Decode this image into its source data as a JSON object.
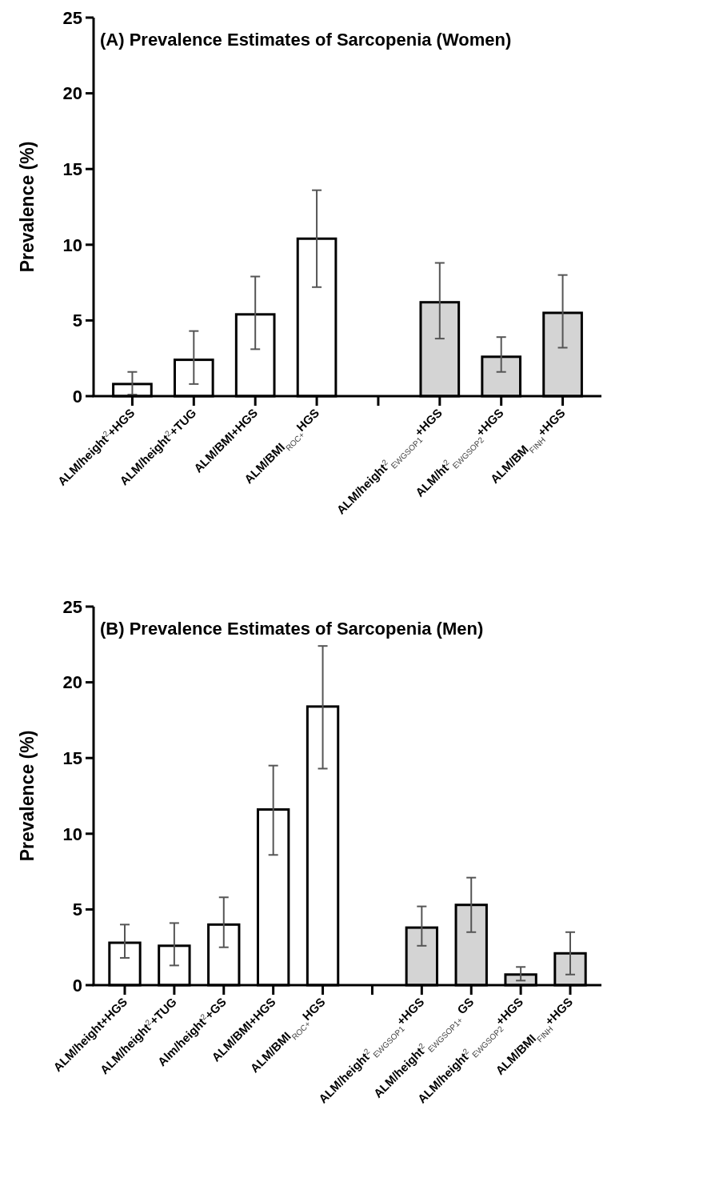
{
  "chart_data": [
    {
      "type": "bar",
      "title": "(A) Prevalence Estimates of Sarcopenia (Women)",
      "ylabel": "Prevalence (%)",
      "categories": [
        "ALM/height$^{2}$+HGS",
        "ALM/height$^{2}$+TUG",
        "ALM/BMI+HGS",
        "ALM/BMI$_{ROC+}$HGS",
        null,
        "ALM/height$^{2}$$_{EWGSOP1}$+HGS",
        "ALM/ht$^{2}$$_{EWGSOP2}$+HGS",
        "ALM/BM$_{FINH}$+HGS"
      ],
      "values": [
        0.8,
        2.4,
        5.4,
        10.4,
        null,
        6.2,
        2.6,
        5.5
      ],
      "errors": [
        [
          0.1,
          1.6
        ],
        [
          0.8,
          4.3
        ],
        [
          3.1,
          7.9
        ],
        [
          7.2,
          13.6
        ],
        null,
        [
          3.8,
          8.8
        ],
        [
          1.6,
          3.9
        ],
        [
          3.2,
          8.0
        ]
      ],
      "colors": [
        "#ffffff",
        "#ffffff",
        "#ffffff",
        "#ffffff",
        null,
        "#d4d4d4",
        "#d4d4d4",
        "#d4d4d4"
      ],
      "ylim": [
        0,
        25
      ],
      "yticks": [
        0,
        5,
        10,
        15,
        20,
        25
      ],
      "grid": false
    },
    {
      "type": "bar",
      "title": "(B) Prevalence Estimates of Sarcopenia (Men)",
      "ylabel": "Prevalence (%)",
      "categories": [
        "ALM/height+HGS",
        "ALM/height$^{2}$+TUG",
        "Alm/height$^{2}$+GS",
        "ALM/BMI+HGS",
        "ALM/BMI$_{ROC+}$HGS",
        null,
        "ALM/height$^{2}$$_{EWGSOP1}$+HGS",
        "ALM/height$^{2}$$_{EWGSOP1+}$ GS",
        "ALM/height$^{2}$$_{EWGSOP2}$+HGS",
        "ALM/BMI$_{FINH}$+HGS"
      ],
      "values": [
        2.8,
        2.6,
        4.0,
        11.6,
        18.4,
        null,
        3.8,
        5.3,
        0.7,
        2.1
      ],
      "errors": [
        [
          1.8,
          4.0
        ],
        [
          1.3,
          4.1
        ],
        [
          2.5,
          5.8
        ],
        [
          8.6,
          14.5
        ],
        [
          14.3,
          22.4
        ],
        null,
        [
          2.6,
          5.2
        ],
        [
          3.5,
          7.1
        ],
        [
          0.3,
          1.2
        ],
        [
          0.7,
          3.5
        ]
      ],
      "colors": [
        "#ffffff",
        "#ffffff",
        "#ffffff",
        "#ffffff",
        "#ffffff",
        null,
        "#d4d4d4",
        "#d4d4d4",
        "#d4d4d4",
        "#d4d4d4"
      ],
      "ylim": [
        0,
        25
      ],
      "yticks": [
        0,
        5,
        10,
        15,
        20,
        25
      ],
      "grid": false
    }
  ]
}
